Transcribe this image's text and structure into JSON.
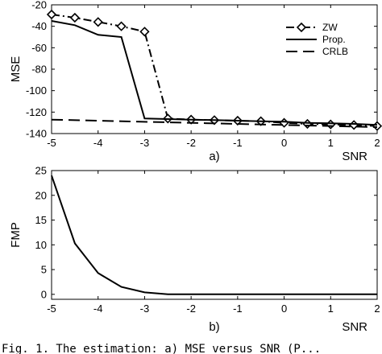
{
  "chart_data": [
    {
      "type": "line",
      "panel_label": "a)",
      "xlabel": "SNR",
      "ylabel": "MSE",
      "xlim": [
        -5,
        2
      ],
      "ylim": [
        -140,
        -20
      ],
      "xticks": [
        -5,
        -4,
        -3,
        -2,
        -1,
        0,
        1,
        2
      ],
      "yticks": [
        -20,
        -40,
        -60,
        -80,
        -100,
        -120,
        -140
      ],
      "grid": false,
      "legend_position": "top-right",
      "series": [
        {
          "name": "ZW",
          "style": "dashdot",
          "marker": "diamond",
          "x": [
            -5,
            -4.5,
            -4,
            -3.5,
            -3,
            -2.5,
            -2,
            -1.5,
            -1,
            -0.5,
            0,
            0.5,
            1,
            1.5,
            2
          ],
          "y": [
            -29,
            -32,
            -36,
            -40,
            -45,
            -126,
            -127,
            -127.5,
            -128,
            -128.5,
            -130,
            -131,
            -131.5,
            -132,
            -133
          ]
        },
        {
          "name": "Prop.",
          "style": "solid",
          "marker": "none",
          "x": [
            -5,
            -4.5,
            -4,
            -3.5,
            -3,
            -2.5,
            -2,
            -1.5,
            -1,
            -0.5,
            0,
            0.5,
            1,
            1.5,
            2
          ],
          "y": [
            -35,
            -39,
            -48,
            -50,
            -126,
            -126.5,
            -127,
            -127.5,
            -128,
            -128.5,
            -129,
            -130,
            -130.5,
            -131,
            -132
          ]
        },
        {
          "name": "CRLB",
          "style": "dashed",
          "marker": "none",
          "x": [
            -5,
            2
          ],
          "y": [
            -127,
            -134
          ]
        }
      ]
    },
    {
      "type": "line",
      "panel_label": "b)",
      "xlabel": "SNR",
      "ylabel": "FMP",
      "xlim": [
        -5,
        2
      ],
      "ylim": [
        -1,
        25
      ],
      "xticks": [
        -5,
        -4,
        -3,
        -2,
        -1,
        0,
        1,
        2
      ],
      "yticks": [
        0,
        5,
        10,
        15,
        20,
        25
      ],
      "grid": false,
      "series": [
        {
          "style": "solid",
          "marker": "none",
          "x": [
            -5,
            -4.5,
            -4,
            -3.5,
            -3,
            -2.5,
            -2,
            -1.5,
            -1,
            -0.5,
            0,
            0.5,
            1,
            1.5,
            2
          ],
          "y": [
            24,
            10.3,
            4.3,
            1.5,
            0.4,
            0,
            0,
            0,
            0,
            0,
            0,
            0,
            0,
            0,
            0
          ]
        }
      ]
    }
  ],
  "caption_fragment": "Fig. 1.  The estimation: a) MSE versus SNR (P..."
}
